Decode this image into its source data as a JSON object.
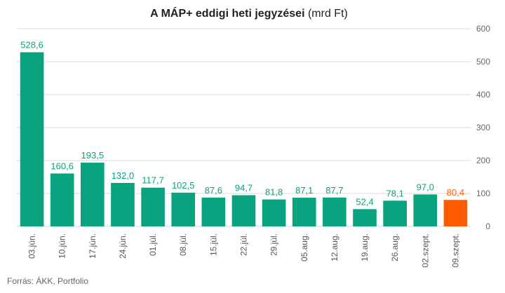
{
  "chart_data": {
    "type": "bar",
    "title_bold": "A MÁP+ eddigi heti jegyzései",
    "title_unit": " (mrd Ft)",
    "categories": [
      "03.jún.",
      "10.jún.",
      "17.jún.",
      "24.jún.",
      "01.júl.",
      "08.júl.",
      "15.júl.",
      "22.júl.",
      "29.júl.",
      "05.aug.",
      "12.aug.",
      "19.aug.",
      "26.aug.",
      "02.szept.",
      "09.szept."
    ],
    "values": [
      528.6,
      160.6,
      193.5,
      132.0,
      117.7,
      102.5,
      87.6,
      94.7,
      81.8,
      87.1,
      87.7,
      52.4,
      78.1,
      97.0,
      80.4
    ],
    "value_labels": [
      "528,6",
      "160,6",
      "193,5",
      "132,0",
      "117,7",
      "102,5",
      "87,6",
      "94,7",
      "81,8",
      "87,1",
      "87,7",
      "52,4",
      "78,1",
      "97,0",
      "80,4"
    ],
    "yticks": [
      "0",
      "100",
      "200",
      "300",
      "400",
      "500",
      "600"
    ],
    "ylim": [
      0,
      600
    ],
    "grid": true,
    "y_axis_side": "right",
    "colors": {
      "bar": "#0aa37f",
      "highlight": "#ff5c00",
      "grid": "#d9d9d9",
      "text": "#333333"
    },
    "highlight_index": 14,
    "source": "Forrás: ÁKK, Portfolio"
  }
}
